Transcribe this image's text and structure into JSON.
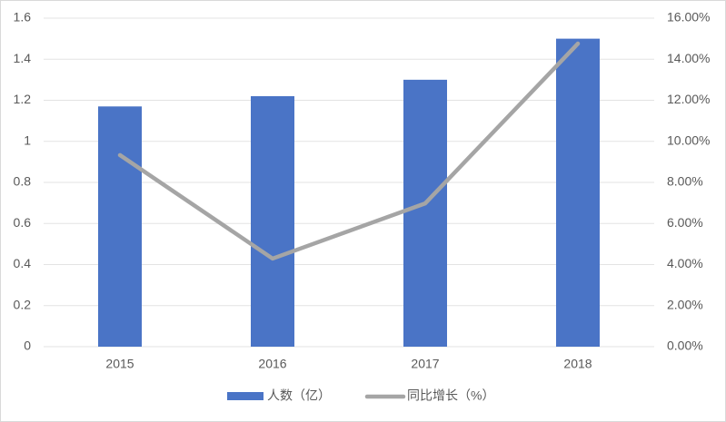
{
  "chart_data": {
    "type": "bar_line",
    "categories": [
      "2015",
      "2016",
      "2017",
      "2018"
    ],
    "series": [
      {
        "name": "人数（亿）",
        "type": "bar",
        "color": "#4a74c6",
        "values": [
          1.17,
          1.22,
          1.3,
          1.5
        ]
      },
      {
        "name": "同比增长（%）",
        "type": "line",
        "axis": "y2",
        "color": "#a5a5a5",
        "values": [
          9.33,
          4.29,
          6.98,
          14.76
        ]
      }
    ],
    "ylim": [
      0,
      1.6
    ],
    "yticks": [
      0,
      0.2,
      0.4,
      0.6,
      0.8,
      1,
      1.2,
      1.4,
      1.6
    ],
    "y2lim": [
      0,
      16
    ],
    "y2ticks": [
      {
        "value": 0,
        "label": "0.00%"
      },
      {
        "value": 2,
        "label": "2.00%"
      },
      {
        "value": 4,
        "label": "4.00%"
      },
      {
        "value": 6,
        "label": "6.00%"
      },
      {
        "value": 8,
        "label": "8.00%"
      },
      {
        "value": 10,
        "label": "10.00%"
      },
      {
        "value": 12,
        "label": "12.00%"
      },
      {
        "value": 14,
        "label": "14.00%"
      },
      {
        "value": 16,
        "label": "16.00%"
      }
    ],
    "grid": true,
    "legend": "bottom"
  }
}
